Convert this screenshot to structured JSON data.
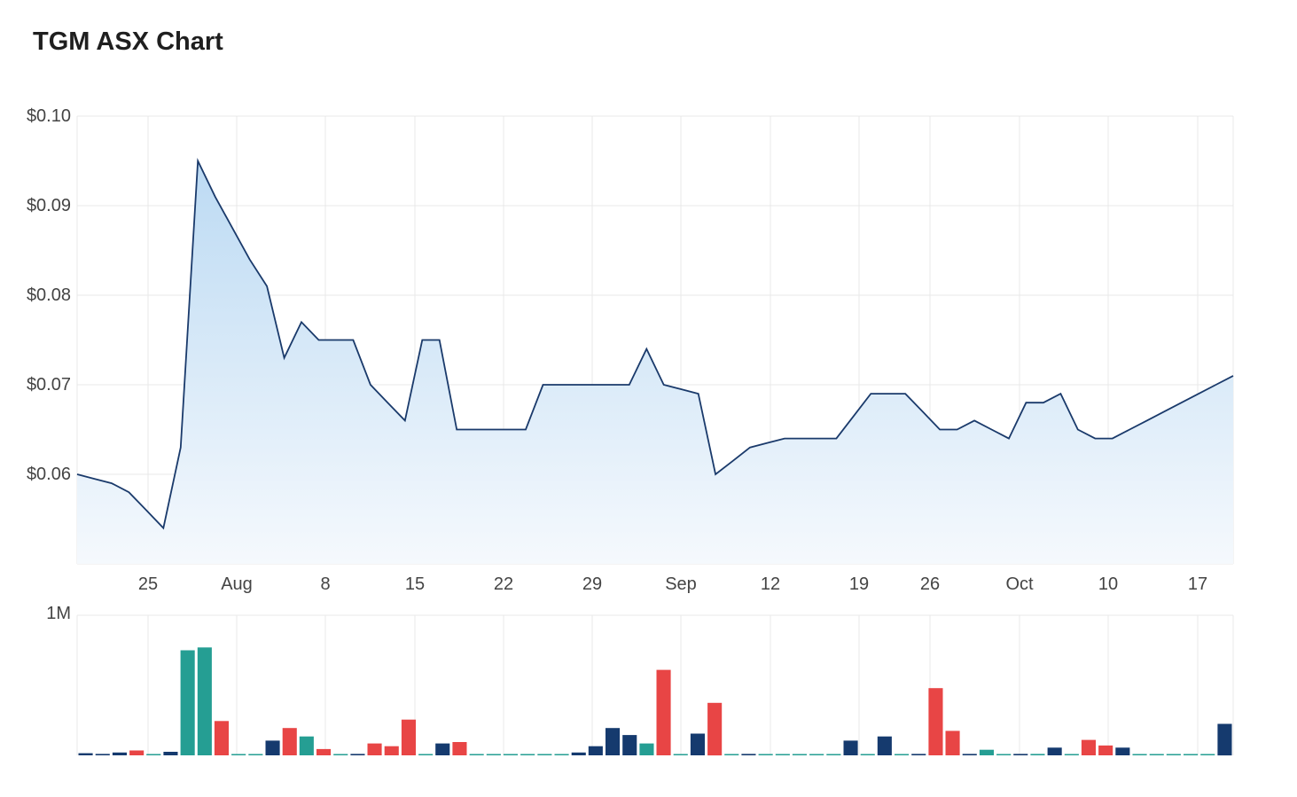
{
  "title": "TGM ASX Chart",
  "colors": {
    "line": "#1a3a6b",
    "area_top": "#bcdaf3",
    "area_bottom": "#f5f9fd",
    "grid": "#e8e8e8",
    "vol_up": "#e84545",
    "vol_down": "#153a6e",
    "vol_flat": "#259e93"
  },
  "chart_data": [
    {
      "type": "area",
      "series": [
        {
          "values": [
            0.06,
            0.0595,
            0.059,
            0.058,
            0.056,
            0.054,
            0.063,
            0.095,
            0.091,
            0.0875,
            0.084,
            0.081,
            0.073,
            0.077,
            0.075,
            0.075,
            0.075,
            0.07,
            0.068,
            0.066,
            0.075,
            0.075,
            0.065,
            0.065,
            0.065,
            0.065,
            0.065,
            0.07,
            0.07,
            0.07,
            0.07,
            0.07,
            0.07,
            0.074,
            0.07,
            0.0695,
            0.069,
            0.06,
            0.0615,
            0.063,
            0.0635,
            0.064,
            0.064,
            0.064,
            0.064,
            0.0665,
            0.069,
            0.069,
            0.069,
            0.067,
            0.065,
            0.065,
            0.066,
            0.065,
            0.064,
            0.068,
            0.068,
            0.069,
            0.065,
            0.064,
            0.064,
            0.065,
            0.066,
            0.067,
            0.068,
            0.069,
            0.07,
            0.071
          ]
        }
      ],
      "x_tick_labels": [
        "25",
        "Aug",
        "8",
        "15",
        "22",
        "29",
        "Sep",
        "12",
        "19",
        "26",
        "Oct",
        "10",
        "17"
      ],
      "y_tick_labels": [
        "$0.10",
        "$0.09",
        "$0.08",
        "$0.07",
        "$0.06"
      ],
      "y_ticks": [
        0.1,
        0.09,
        0.08,
        0.07,
        0.06
      ],
      "ylim": [
        0.05,
        0.1
      ],
      "grid": true
    },
    {
      "type": "bar",
      "y_tick_labels": [
        "1M"
      ],
      "ylim": [
        0,
        1000000
      ],
      "values": [
        15000,
        10000,
        20000,
        35000,
        5000,
        25000,
        750000,
        770000,
        245000,
        5000,
        5000,
        105000,
        195000,
        135000,
        45000,
        5000,
        10000,
        85000,
        65000,
        255000,
        5000,
        85000,
        95000,
        5000,
        5000,
        5000,
        5000,
        5000,
        5000,
        20000,
        65000,
        195000,
        145000,
        85000,
        610000,
        5000,
        155000,
        375000,
        5000,
        10000,
        5000,
        5000,
        5000,
        5000,
        5000,
        105000,
        5000,
        135000,
        5000,
        10000,
        480000,
        175000,
        10000,
        40000,
        5000,
        10000,
        10000,
        55000,
        5000,
        110000,
        70000,
        55000,
        5000,
        5000,
        5000,
        5000,
        5000,
        225000
      ],
      "colors": [
        "down",
        "down",
        "down",
        "up",
        "flat",
        "down",
        "flat",
        "flat",
        "up",
        "flat",
        "flat",
        "down",
        "up",
        "flat",
        "up",
        "flat",
        "down",
        "up",
        "up",
        "up",
        "flat",
        "down",
        "up",
        "flat",
        "flat",
        "flat",
        "flat",
        "flat",
        "flat",
        "down",
        "down",
        "down",
        "down",
        "flat",
        "up",
        "flat",
        "down",
        "up",
        "flat",
        "down",
        "flat",
        "flat",
        "flat",
        "flat",
        "flat",
        "down",
        "flat",
        "down",
        "flat",
        "down",
        "up",
        "up",
        "down",
        "flat",
        "flat",
        "down",
        "flat",
        "down",
        "flat",
        "up",
        "up",
        "down",
        "flat",
        "flat",
        "flat",
        "flat",
        "flat",
        "down"
      ]
    }
  ]
}
